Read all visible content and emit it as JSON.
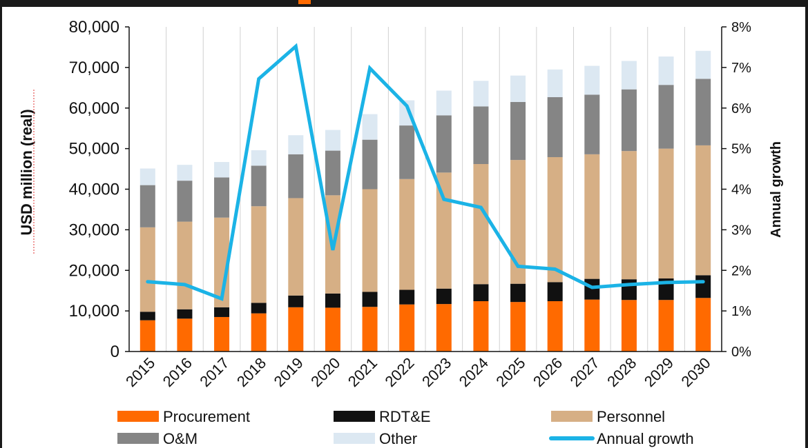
{
  "chart_data": {
    "type": "bar",
    "stacked": true,
    "categories": [
      "2015",
      "2016",
      "2017",
      "2018",
      "2019",
      "2020",
      "2021",
      "2022",
      "2023",
      "2024",
      "2025",
      "2026",
      "2027",
      "2028",
      "2029",
      "2030"
    ],
    "series": [
      {
        "name": "Procurement",
        "type": "bar",
        "axis": "left",
        "color": "#FF6A00",
        "values": [
          7700,
          8100,
          8500,
          9400,
          10900,
          10800,
          11000,
          11600,
          11700,
          12400,
          12200,
          12400,
          12800,
          12700,
          12700,
          13200
        ]
      },
      {
        "name": "RDT&E",
        "type": "bar",
        "axis": "left",
        "color": "#111111",
        "values": [
          2100,
          2300,
          2400,
          2600,
          2900,
          3500,
          3700,
          3600,
          3800,
          4200,
          4500,
          4700,
          5100,
          5100,
          5300,
          5600
        ]
      },
      {
        "name": "Personnel",
        "type": "bar",
        "axis": "left",
        "color": "#D6AF85",
        "values": [
          20800,
          21600,
          22100,
          23800,
          24000,
          24200,
          25300,
          27300,
          28600,
          29600,
          30500,
          30800,
          30700,
          31600,
          32000,
          32000
        ]
      },
      {
        "name": "O&M",
        "type": "bar",
        "axis": "left",
        "color": "#858585",
        "values": [
          10400,
          10100,
          9900,
          10000,
          10800,
          11000,
          12200,
          13200,
          14100,
          14200,
          14300,
          14800,
          14700,
          15200,
          15700,
          16400
        ]
      },
      {
        "name": "Other",
        "type": "bar",
        "axis": "left",
        "color": "#DCE8F2",
        "values": [
          4100,
          3900,
          3800,
          3800,
          4700,
          5100,
          6300,
          6200,
          6100,
          6300,
          6500,
          6800,
          7100,
          7000,
          7000,
          6900
        ]
      },
      {
        "name": "Annual growth",
        "type": "line",
        "axis": "right",
        "color": "#1BB3E6",
        "values": [
          1.72,
          1.65,
          1.3,
          6.72,
          7.52,
          2.5,
          6.98,
          6.05,
          3.75,
          3.55,
          2.1,
          2.03,
          1.58,
          1.65,
          1.7,
          1.72
        ]
      }
    ],
    "ylabel": "USD million (real)",
    "y2label": "Annual growth",
    "ylim": [
      0,
      80000
    ],
    "y2lim": [
      0,
      8
    ],
    "yticks": [
      "80,000",
      "70,000",
      "60,000",
      "50,000",
      "40,000",
      "30,000",
      "20,000",
      "10,000",
      "0"
    ],
    "y2ticks": [
      "8%",
      "7%",
      "6%",
      "5%",
      "4%",
      "3%",
      "2%",
      "1%",
      "0%"
    ],
    "grid": "vertical",
    "legend": "bottom",
    "legend_entries": [
      "Procurement",
      "RDT&E",
      "Personnel",
      "O&M",
      "Other",
      "Annual growth"
    ]
  },
  "colors": {
    "frame_border": "#1a1a1a",
    "header_bar": "#1a1a1a",
    "header_accent": "#FF6A00",
    "gridline": "#d0d0d0",
    "axis": "#111111"
  }
}
